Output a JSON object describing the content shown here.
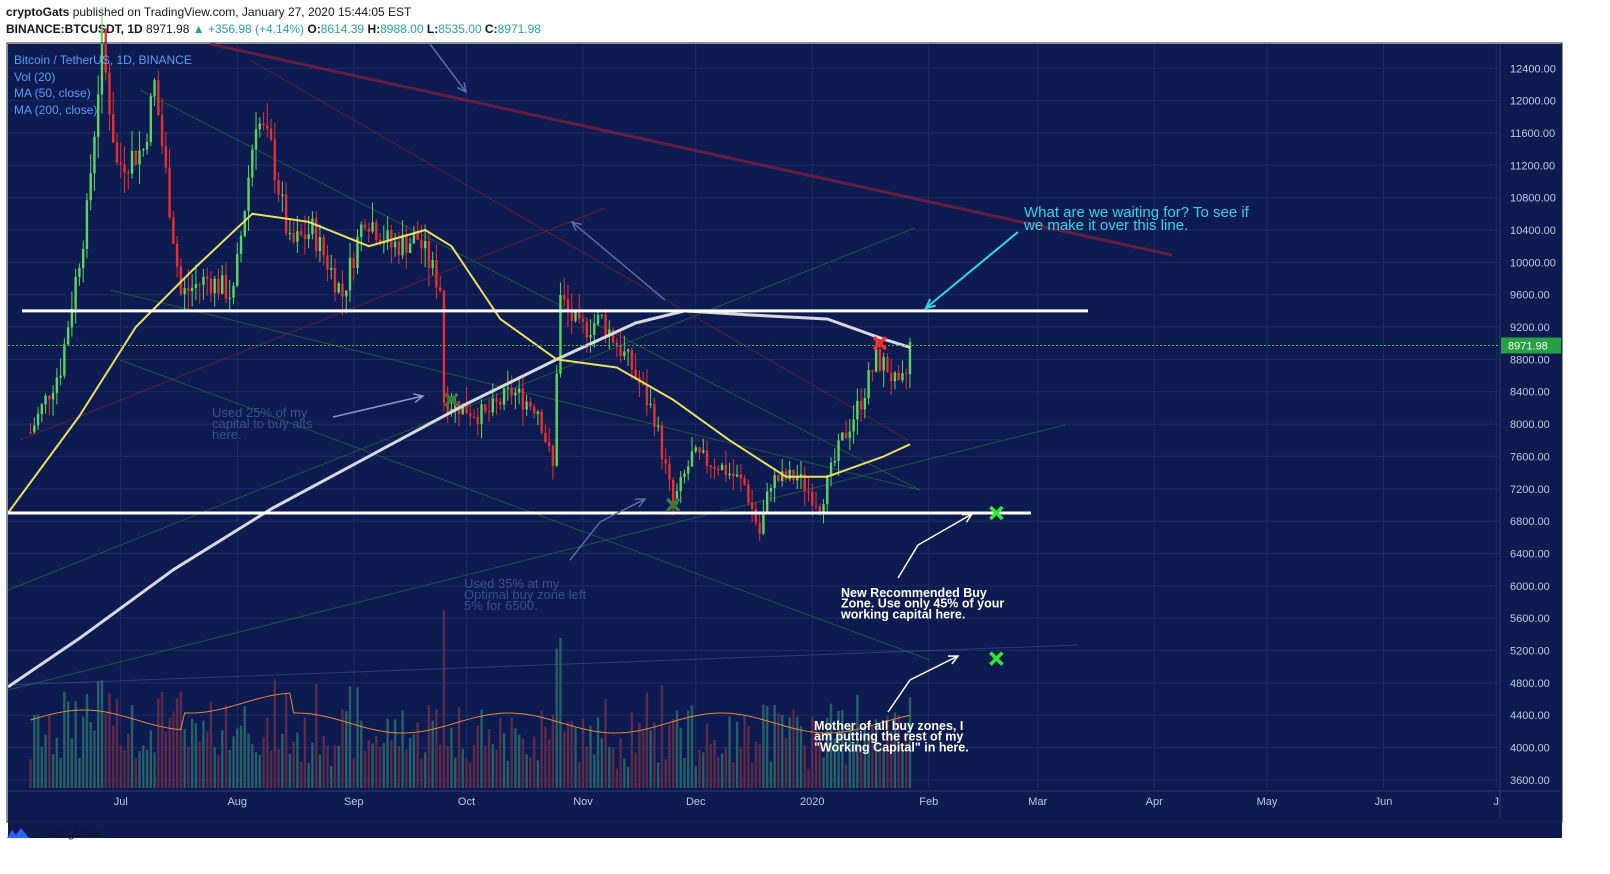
{
  "header": {
    "author": "cryptoGats",
    "published_text": "published on TradingView.com, January 27, 2020 15:44:05 EST",
    "symbol": "BINANCE:BTCUSDT, 1D",
    "last": "8971.98",
    "change": "▲ +356.98 (+4.14%)",
    "open_label": "O:",
    "open": "8614.39",
    "high_label": "H:",
    "high": "8988.00",
    "low_label": "L:",
    "low": "8535.00",
    "close_label": "C:",
    "close": "8971.98"
  },
  "legend": {
    "title": "Bitcoin / TetherUS, 1D, BINANCE",
    "vol": "Vol (20)",
    "ma50": "MA (50, close)",
    "ma200": "MA (200, close)"
  },
  "footer": {
    "brand": "TradingView"
  },
  "colors": {
    "background": "#0d1b50",
    "up": "#5fd35f",
    "down": "#e83030",
    "ma50": "#e8e060",
    "ma200": "#d8d8e0",
    "price_tag": "#26a042"
  },
  "chart_data": {
    "type": "candlestick",
    "symbol": "BTCUSDT",
    "interval": "1D",
    "ylim": [
      3500,
      12700
    ],
    "y_ticks": [
      "12400.00",
      "12000.00",
      "11600.00",
      "11200.00",
      "10800.00",
      "10400.00",
      "10000.00",
      "9600.00",
      "9200.00",
      "8800.00",
      "8400.00",
      "8000.00",
      "7600.00",
      "7200.00",
      "6800.00",
      "6400.00",
      "6000.00",
      "5600.00",
      "5200.00",
      "4800.00",
      "4400.00",
      "4000.00",
      "3600.00"
    ],
    "x_ticks": [
      "Jul",
      "Aug",
      "Sep",
      "Oct",
      "Nov",
      "Dec",
      "2020",
      "Feb",
      "Mar",
      "Apr",
      "May",
      "Jun",
      "J"
    ],
    "x_tick_dates": [
      "2019-07-01",
      "2019-08-01",
      "2019-09-01",
      "2019-10-01",
      "2019-11-01",
      "2019-12-01",
      "2020-01-01",
      "2020-02-01",
      "2020-03-01",
      "2020-04-01",
      "2020-05-01",
      "2020-06-01",
      "2020-07-01"
    ],
    "last_price": "8971.98",
    "price_path": [
      [
        "2019-06-07",
        7900
      ],
      [
        "2019-06-15",
        8700
      ],
      [
        "2019-06-22",
        10600
      ],
      [
        "2019-06-26",
        12700
      ],
      [
        "2019-06-30",
        11200
      ],
      [
        "2019-07-07",
        11400
      ],
      [
        "2019-07-10",
        12200
      ],
      [
        "2019-07-17",
        9600
      ],
      [
        "2019-07-24",
        9800
      ],
      [
        "2019-07-31",
        9600
      ],
      [
        "2019-08-06",
        11800
      ],
      [
        "2019-08-10",
        11400
      ],
      [
        "2019-08-15",
        10200
      ],
      [
        "2019-08-21",
        10400
      ],
      [
        "2019-08-29",
        9600
      ],
      [
        "2019-09-04",
        10600
      ],
      [
        "2019-09-11",
        10200
      ],
      [
        "2019-09-18",
        10300
      ],
      [
        "2019-09-24",
        9700
      ],
      [
        "2019-09-25",
        8300
      ],
      [
        "2019-10-06",
        8100
      ],
      [
        "2019-10-13",
        8400
      ],
      [
        "2019-10-20",
        8200
      ],
      [
        "2019-10-24",
        7450
      ],
      [
        "2019-10-25",
        8700
      ],
      [
        "2019-10-26",
        9550
      ],
      [
        "2019-10-31",
        9150
      ],
      [
        "2019-11-06",
        9300
      ],
      [
        "2019-11-14",
        8700
      ],
      [
        "2019-11-20",
        8100
      ],
      [
        "2019-11-25",
        7000
      ],
      [
        "2019-11-30",
        7600
      ],
      [
        "2019-12-07",
        7500
      ],
      [
        "2019-12-14",
        7250
      ],
      [
        "2019-12-18",
        6650
      ],
      [
        "2019-12-21",
        7300
      ],
      [
        "2019-12-28",
        7350
      ],
      [
        "2020-01-03",
        7000
      ],
      [
        "2020-01-09",
        7800
      ],
      [
        "2020-01-14",
        8300
      ],
      [
        "2020-01-18",
        8800
      ],
      [
        "2020-01-21",
        8700
      ],
      [
        "2020-01-24",
        8400
      ],
      [
        "2020-01-26",
        8614
      ],
      [
        "2020-01-27",
        8972
      ]
    ],
    "ma50": [
      [
        "2019-06-01",
        6900
      ],
      [
        "2019-06-20",
        8100
      ],
      [
        "2019-07-05",
        9200
      ],
      [
        "2019-07-20",
        9900
      ],
      [
        "2019-08-05",
        10600
      ],
      [
        "2019-08-20",
        10500
      ],
      [
        "2019-09-05",
        10200
      ],
      [
        "2019-09-20",
        10400
      ],
      [
        "2019-09-27",
        10200
      ],
      [
        "2019-10-10",
        9300
      ],
      [
        "2019-10-25",
        8800
      ],
      [
        "2019-11-10",
        8700
      ],
      [
        "2019-11-25",
        8300
      ],
      [
        "2019-12-10",
        7800
      ],
      [
        "2019-12-25",
        7350
      ],
      [
        "2020-01-05",
        7350
      ],
      [
        "2020-01-20",
        7600
      ],
      [
        "2020-01-27",
        7750
      ]
    ],
    "ma200": [
      [
        "2019-06-01",
        4750
      ],
      [
        "2019-06-20",
        5350
      ],
      [
        "2019-07-15",
        6200
      ],
      [
        "2019-08-10",
        6950
      ],
      [
        "2019-09-05",
        7600
      ],
      [
        "2019-10-01",
        8250
      ],
      [
        "2019-10-25",
        8800
      ],
      [
        "2019-11-15",
        9250
      ],
      [
        "2019-11-28",
        9400
      ],
      [
        "2019-12-15",
        9350
      ],
      [
        "2020-01-05",
        9300
      ],
      [
        "2020-01-20",
        9050
      ],
      [
        "2020-01-27",
        8950
      ]
    ],
    "horizontal_levels": [
      9400,
      6900
    ],
    "markers": [
      {
        "date": "2019-09-27",
        "price": 8300,
        "symbol": "x",
        "color": "#3a7a3a"
      },
      {
        "date": "2019-11-25",
        "price": 7000,
        "symbol": "x",
        "color": "#3a7a3a"
      },
      {
        "date": "2020-01-19",
        "price": 9000,
        "symbol": "x",
        "color": "#ff2a2a"
      },
      {
        "date": "2020-02-19",
        "price": 6900,
        "symbol": "x",
        "color": "#33e833"
      },
      {
        "date": "2020-02-19",
        "price": 5100,
        "symbol": "x",
        "color": "#33e833"
      }
    ],
    "annotations": [
      {
        "lines": [
          "What are we waiting for? To see if",
          "we make it over this line."
        ],
        "color": "#2fd7e8"
      },
      {
        "lines": [
          "Used 25% of my",
          "capital to buy alts",
          "here."
        ],
        "color": "#3c4f8a"
      },
      {
        "lines": [
          "Used 35% at my",
          "Optimal buy zone left",
          "5% for 6500."
        ],
        "color": "#3c4f8a"
      },
      {
        "lines": [
          "New Recommended Buy",
          "Zone. Use only 45% of your",
          "working capital here."
        ],
        "color": "#ffffff"
      },
      {
        "lines": [
          "Mother of all buy zones, I",
          "am putting the rest of my",
          "\"Working Capital\" in here."
        ],
        "color": "#ffffff"
      }
    ]
  }
}
